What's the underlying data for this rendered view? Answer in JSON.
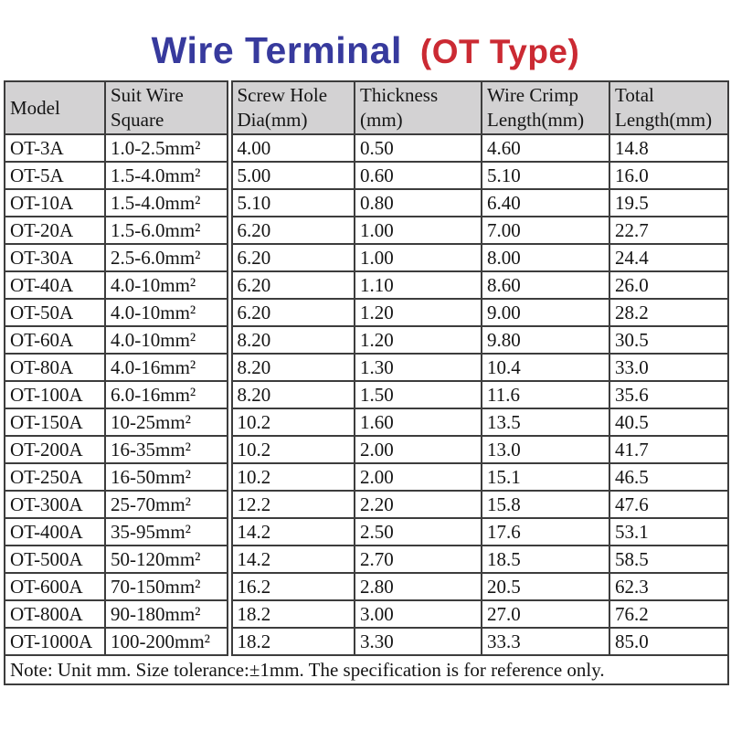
{
  "title": {
    "main": "Wire Terminal",
    "sub": "(OT Type)"
  },
  "colors": {
    "title_main": "#373A9D",
    "title_sub": "#CB2A33",
    "header_bg": "#D3D2D3",
    "border": "#3D3D3D",
    "text": "#141414"
  },
  "table": {
    "headers": [
      {
        "line1": "Model",
        "line2": ""
      },
      {
        "line1": "Suit Wire",
        "line2": "Square"
      },
      {
        "line1": "Screw Hole",
        "line2": "Dia(mm)"
      },
      {
        "line1": "Thickness",
        "line2": "(mm)"
      },
      {
        "line1": "Wire Crimp",
        "line2": "Length(mm)"
      },
      {
        "line1": "Total",
        "line2": "Length(mm)"
      }
    ],
    "rows": [
      [
        "OT-3A",
        "1.0-2.5mm²",
        "4.00",
        "0.50",
        "4.60",
        "14.8"
      ],
      [
        "OT-5A",
        "1.5-4.0mm²",
        "5.00",
        "0.60",
        "5.10",
        "16.0"
      ],
      [
        "OT-10A",
        "1.5-4.0mm²",
        "5.10",
        "0.80",
        "6.40",
        "19.5"
      ],
      [
        "OT-20A",
        "1.5-6.0mm²",
        "6.20",
        "1.00",
        "7.00",
        "22.7"
      ],
      [
        "OT-30A",
        "2.5-6.0mm²",
        "6.20",
        "1.00",
        "8.00",
        "24.4"
      ],
      [
        "OT-40A",
        "4.0-10mm²",
        "6.20",
        "1.10",
        "8.60",
        "26.0"
      ],
      [
        "OT-50A",
        "4.0-10mm²",
        "6.20",
        "1.20",
        "9.00",
        "28.2"
      ],
      [
        "OT-60A",
        "4.0-10mm²",
        "8.20",
        "1.20",
        "9.80",
        "30.5"
      ],
      [
        "OT-80A",
        "4.0-16mm²",
        "8.20",
        "1.30",
        "10.4",
        "33.0"
      ],
      [
        "OT-100A",
        "6.0-16mm²",
        "8.20",
        "1.50",
        "11.6",
        "35.6"
      ],
      [
        "OT-150A",
        "10-25mm²",
        "10.2",
        "1.60",
        "13.5",
        "40.5"
      ],
      [
        "OT-200A",
        "16-35mm²",
        "10.2",
        "2.00",
        "13.0",
        "41.7"
      ],
      [
        "OT-250A",
        "16-50mm²",
        "10.2",
        "2.00",
        "15.1",
        "46.5"
      ],
      [
        "OT-300A",
        "25-70mm²",
        "12.2",
        "2.20",
        "15.8",
        "47.6"
      ],
      [
        "OT-400A",
        "35-95mm²",
        "14.2",
        "2.50",
        "17.6",
        "53.1"
      ],
      [
        "OT-500A",
        "50-120mm²",
        "14.2",
        "2.70",
        "18.5",
        "58.5"
      ],
      [
        "OT-600A",
        "70-150mm²",
        "16.2",
        "2.80",
        "20.5",
        "62.3"
      ],
      [
        "OT-800A",
        "90-180mm²",
        "18.2",
        "3.00",
        "27.0",
        "76.2"
      ],
      [
        "OT-1000A",
        "100-200mm²",
        "18.2",
        "3.30",
        "33.3",
        "85.0"
      ]
    ]
  },
  "note": "Note: Unit mm. Size tolerance:±1mm. The specification is for reference only."
}
